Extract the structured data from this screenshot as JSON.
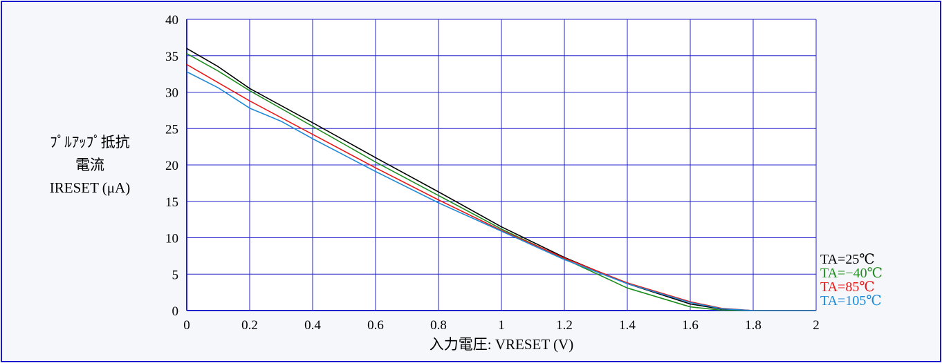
{
  "chart_data": {
    "type": "line",
    "ylabel_lines": [
      "ﾌﾟﾙｱｯﾌﾟ抵抗",
      "電流",
      "IRESET (μA)"
    ],
    "xlabel": "入力電圧: VRESET (V)",
    "xlim": [
      0,
      2
    ],
    "ylim": [
      0,
      40
    ],
    "x_ticks": [
      "0",
      "0.2",
      "0.4",
      "0.6",
      "0.8",
      "1",
      "1.2",
      "1.4",
      "1.6",
      "1.8",
      "2"
    ],
    "y_ticks": [
      "0",
      "5",
      "10",
      "15",
      "20",
      "25",
      "30",
      "35",
      "40"
    ],
    "grid": true,
    "legend_position": "right, below plot",
    "series": [
      {
        "name": "TA=25℃",
        "color": "#000000",
        "points": [
          [
            0,
            36.0
          ],
          [
            0.1,
            33.5
          ],
          [
            0.2,
            30.5
          ],
          [
            0.4,
            25.8
          ],
          [
            0.6,
            21.0
          ],
          [
            0.8,
            16.3
          ],
          [
            1.0,
            11.5
          ],
          [
            1.2,
            7.3
          ],
          [
            1.4,
            3.7
          ],
          [
            1.6,
            0.9
          ],
          [
            1.7,
            0.2
          ],
          [
            1.8,
            0.0
          ],
          [
            2.0,
            0.0
          ]
        ]
      },
      {
        "name": "TA=−40℃",
        "color": "#1e8c1e",
        "points": [
          [
            0,
            35.3
          ],
          [
            0.1,
            32.9
          ],
          [
            0.2,
            30.2
          ],
          [
            0.4,
            25.3
          ],
          [
            0.6,
            20.4
          ],
          [
            0.8,
            15.8
          ],
          [
            1.0,
            11.2
          ],
          [
            1.2,
            7.1
          ],
          [
            1.4,
            3.1
          ],
          [
            1.6,
            0.5
          ],
          [
            1.7,
            0.05
          ],
          [
            1.8,
            0.0
          ],
          [
            2.0,
            0.0
          ]
        ]
      },
      {
        "name": "TA=85℃",
        "color": "#e81818",
        "points": [
          [
            0,
            33.8
          ],
          [
            0.1,
            31.3
          ],
          [
            0.2,
            28.8
          ],
          [
            0.4,
            24.2
          ],
          [
            0.6,
            19.6
          ],
          [
            0.8,
            15.2
          ],
          [
            1.0,
            11.0
          ],
          [
            1.2,
            7.2
          ],
          [
            1.4,
            3.8
          ],
          [
            1.6,
            1.2
          ],
          [
            1.7,
            0.3
          ],
          [
            1.8,
            0.0
          ],
          [
            2.0,
            0.0
          ]
        ]
      },
      {
        "name": "TA=105℃",
        "color": "#1e8ad6",
        "points": [
          [
            0,
            32.8
          ],
          [
            0.1,
            30.6
          ],
          [
            0.2,
            27.8
          ],
          [
            0.3,
            26.0
          ],
          [
            0.4,
            23.6
          ],
          [
            0.6,
            19.1
          ],
          [
            0.8,
            14.8
          ],
          [
            1.0,
            10.9
          ],
          [
            1.2,
            7.0
          ],
          [
            1.4,
            3.7
          ],
          [
            1.6,
            1.1
          ],
          [
            1.7,
            0.25
          ],
          [
            1.8,
            0.0
          ],
          [
            2.0,
            0.0
          ]
        ]
      }
    ]
  }
}
